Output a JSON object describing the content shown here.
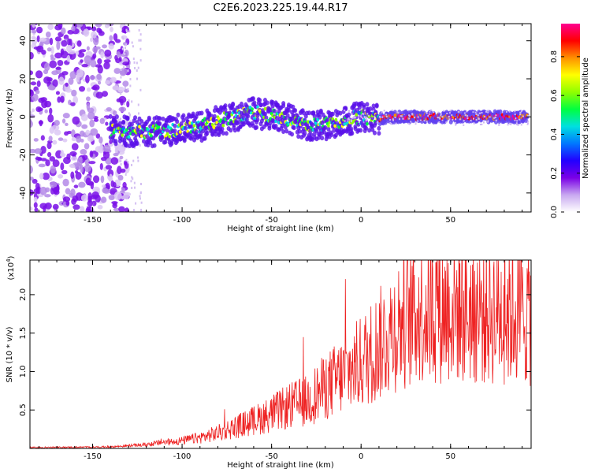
{
  "title": "C2E6.2023.225.19.44.R17",
  "chart_data": [
    {
      "type": "heatmap",
      "name": "spectrogram",
      "xlabel": "Height of straight line (km)",
      "ylabel": "Frequency (Hz)",
      "xlim": [
        -185,
        95
      ],
      "ylim": [
        -50,
        49
      ],
      "xticks": [
        -150,
        -100,
        -50,
        0,
        50
      ],
      "yticks": [
        -40,
        -20,
        0,
        20,
        40
      ],
      "colorbar": {
        "label": "Normalized spectral amplitude",
        "range": [
          0.0,
          0.97
        ],
        "ticks": [
          0.0,
          0.2,
          0.4,
          0.6,
          0.8
        ],
        "colormap": [
          "#ffffff",
          "#c8a8f0",
          "#7a00e6",
          "#2200ff",
          "#0078ff",
          "#00e0e0",
          "#00ff40",
          "#90ff00",
          "#ffff00",
          "#ff9000",
          "#ff0000",
          "#ff0090"
        ]
      },
      "ridge": {
        "description_points_x": [
          -140,
          -120,
          -105,
          -90,
          -75,
          -60,
          -45,
          -35,
          -30,
          -20,
          -10,
          0,
          10,
          20,
          50,
          93
        ],
        "description_points_y": [
          -7,
          -8,
          -7,
          -5,
          -1,
          2,
          0,
          -3,
          -5,
          -4,
          -2,
          0,
          -1,
          0,
          0,
          0
        ]
      }
    },
    {
      "type": "line",
      "name": "snr",
      "xlabel": "Height of straight line (km)",
      "ylabel": "SNR (10 * v/v)",
      "yscale_label": "(x10^4)",
      "xlim": [
        -185,
        95
      ],
      "ylim": [
        0,
        2.45
      ],
      "xticks": [
        -150,
        -100,
        -50,
        0,
        50
      ],
      "yticks": [
        0.5,
        1.0,
        1.5,
        2.0
      ],
      "line_color": "#ee2222",
      "envelope_x": [
        -185,
        -140,
        -120,
        -110,
        -100,
        -90,
        -80,
        -70,
        -60,
        -50,
        -40,
        -30,
        -20,
        -10,
        0,
        10,
        20,
        30,
        40,
        50,
        60,
        70,
        80,
        95
      ],
      "envelope_y": [
        0.01,
        0.02,
        0.05,
        0.08,
        0.1,
        0.14,
        0.2,
        0.28,
        0.36,
        0.45,
        0.55,
        0.62,
        0.8,
        0.95,
        1.12,
        1.35,
        1.6,
        1.78,
        1.82,
        1.84,
        1.8,
        1.78,
        1.77,
        1.75
      ]
    }
  ],
  "text": {
    "colorbar_tick_labels": [
      "0.0",
      "0.2",
      "0.4",
      "0.6",
      "0.8"
    ],
    "top_ytick_labels": [
      "-40",
      "-20",
      "0",
      "20",
      "40"
    ],
    "bottom_ytick_labels": [
      "0.5",
      "1.0",
      "1.5",
      "2.0"
    ],
    "xtick_labels": [
      "-150",
      "-100",
      "-50",
      "0",
      "50"
    ]
  }
}
